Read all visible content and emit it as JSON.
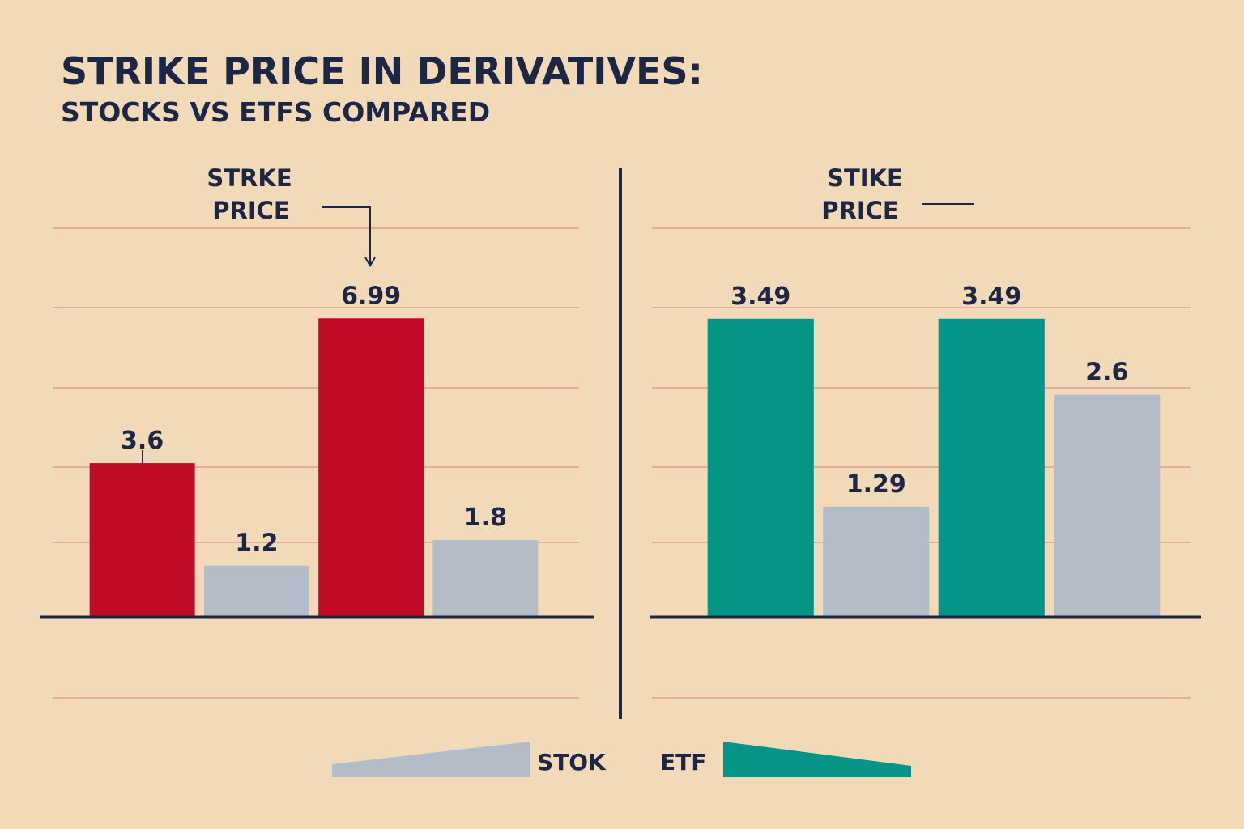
{
  "title": "STRIKE PRICE IN DERIVATIVES:",
  "subtitle": "STOCKS VS ETFS COMPARED",
  "chart_data": [
    {
      "type": "bar",
      "annotation": [
        "STRKE",
        "PRICE"
      ],
      "categories": [
        null,
        null,
        null,
        null
      ],
      "values": [
        3.6,
        1.2,
        6.99,
        1.8
      ],
      "colors": [
        "#c00a27",
        "#b4bcc7",
        "#c00a27",
        "#b4bcc7"
      ],
      "ylim": [
        0,
        8
      ]
    },
    {
      "type": "bar",
      "annotation": [
        "STIKE",
        "PRICE"
      ],
      "categories": [
        null,
        null,
        null,
        null
      ],
      "values": [
        3.49,
        1.29,
        3.49,
        2.6
      ],
      "colors": [
        "#049488",
        "#b4bcc7",
        "#049488",
        "#b4bcc7"
      ],
      "ylim": [
        0,
        4
      ]
    }
  ],
  "legend": [
    {
      "name": "STOK",
      "color": "#b4bcc7"
    },
    {
      "name": "ETF",
      "color": "#049488"
    }
  ]
}
